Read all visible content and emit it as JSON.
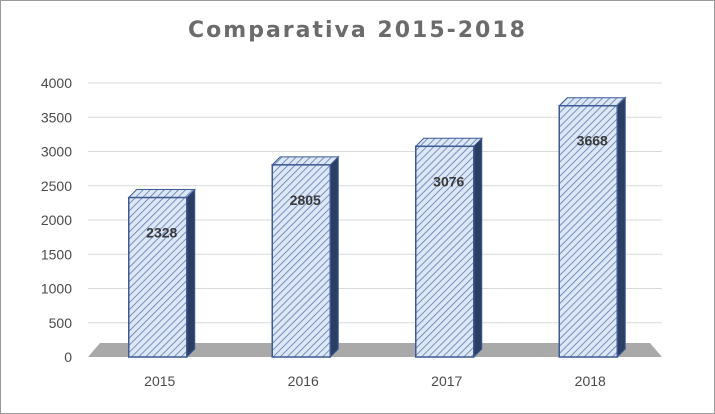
{
  "chart_data": {
    "type": "bar",
    "title": "Comparativa 2015-2018",
    "categories": [
      "2015",
      "2016",
      "2017",
      "2018"
    ],
    "values": [
      2328,
      2805,
      3076,
      3668
    ],
    "data_labels": [
      "2328",
      "2805",
      "3076",
      "3668"
    ],
    "ylim": [
      0,
      4000
    ],
    "yticks": [
      "0",
      "500",
      "1000",
      "1500",
      "2000",
      "2500",
      "3000",
      "3500",
      "4000"
    ],
    "xlabel": "",
    "ylabel": "",
    "grid": true,
    "legend": "none",
    "style": "3d-column",
    "colors": {
      "bar_fill": "#dde7f5",
      "bar_hatch": "#5b7bb5",
      "bar_edge": "#3d5a93",
      "bar_side": "#2c3e63",
      "floor": "#a9a9a9",
      "grid": "#d9d9d9",
      "title": "#6b6b6b"
    }
  }
}
